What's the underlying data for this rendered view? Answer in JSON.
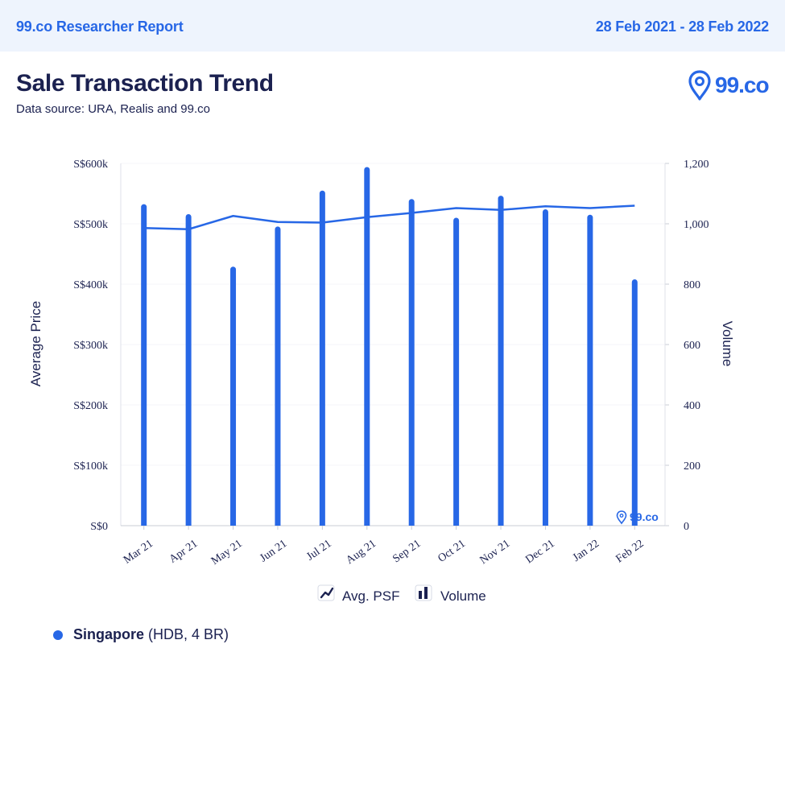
{
  "header": {
    "brand": "99.co Researcher Report",
    "date_range": "28 Feb 2021 - 28 Feb 2022"
  },
  "report": {
    "title": "Sale Transaction Trend",
    "source": "Data source: URA, Realis and 99.co"
  },
  "logo": {
    "text": "99.co",
    "watermark_text": "99.co"
  },
  "colors": {
    "accent": "#2767e6",
    "text": "#1b2150",
    "header_bg": "#eef4fd"
  },
  "chart_data": {
    "type": "bar",
    "categories": [
      "Mar 21",
      "Apr 21",
      "May 21",
      "Jun 21",
      "Jul 21",
      "Aug 21",
      "Sep 21",
      "Oct 21",
      "Nov 21",
      "Dec 21",
      "Jan 22",
      "Feb 22"
    ],
    "series": [
      {
        "name": "Volume",
        "type": "bar",
        "axis": "right",
        "values": [
          1065,
          1032,
          858,
          991,
          1110,
          1188,
          1082,
          1020,
          1093,
          1048,
          1030,
          816
        ]
      },
      {
        "name": "Avg. PSF",
        "type": "line",
        "axis": "left",
        "values": [
          493000,
          491000,
          513000,
          503000,
          502000,
          511000,
          518000,
          526000,
          523000,
          529000,
          526000,
          530000
        ]
      }
    ],
    "y_left": {
      "label": "Average Price",
      "ticks": [
        "S$0",
        "S$100k",
        "S$200k",
        "S$300k",
        "S$400k",
        "S$500k",
        "S$600k"
      ],
      "range": [
        0,
        600000
      ]
    },
    "y_right": {
      "label": "Volume",
      "ticks": [
        "0",
        "200",
        "400",
        "600",
        "800",
        "1,000",
        "1,200"
      ],
      "range": [
        0,
        1200
      ]
    },
    "legend": [
      {
        "label": "Avg. PSF",
        "icon": "line-chart-icon"
      },
      {
        "label": "Volume",
        "icon": "bar-chart-icon"
      }
    ],
    "legend_position": "bottom-center",
    "grid": true
  },
  "series_legend": {
    "name": "Singapore",
    "detail": "(HDB, 4 BR)"
  }
}
